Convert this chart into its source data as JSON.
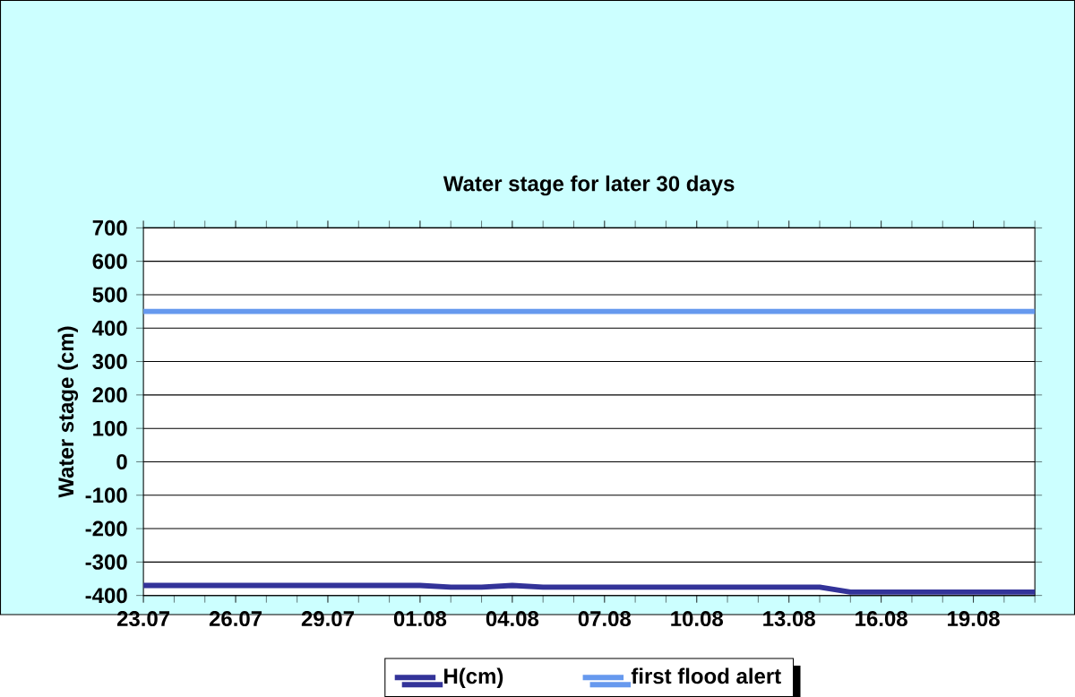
{
  "chart_data": {
    "type": "line",
    "title": "Water stage for later 30 days",
    "ylabel": "Water stage (cm)",
    "categories": [
      "23.07",
      null,
      null,
      "26.07",
      null,
      null,
      "29.07",
      null,
      null,
      "01.08",
      null,
      null,
      "04.08",
      null,
      null,
      "07.08",
      null,
      null,
      "10.08",
      null,
      null,
      "13.08",
      null,
      null,
      "16.08",
      null,
      null,
      "19.08",
      null,
      null
    ],
    "series": [
      {
        "name": "H(cm)",
        "color": "#333399",
        "values": [
          -370,
          -370,
          -370,
          -370,
          -370,
          -370,
          -370,
          -370,
          -370,
          -370,
          -375,
          -375,
          -370,
          -375,
          -375,
          -375,
          -375,
          -375,
          -375,
          -375,
          -375,
          -375,
          -375,
          -390,
          -390,
          -390,
          -390,
          -390,
          -390,
          -390
        ]
      },
      {
        "name": "first flood alert",
        "color": "#6699ee",
        "values": [
          450,
          450,
          450,
          450,
          450,
          450,
          450,
          450,
          450,
          450,
          450,
          450,
          450,
          450,
          450,
          450,
          450,
          450,
          450,
          450,
          450,
          450,
          450,
          450,
          450,
          450,
          450,
          450,
          450,
          450
        ]
      }
    ],
    "ylim": [
      -400,
      700
    ],
    "yticks": [
      -400,
      -300,
      -200,
      -100,
      0,
      100,
      200,
      300,
      400,
      500,
      600,
      700
    ],
    "grid": "y",
    "legend": "bottom",
    "marker": "none",
    "line_style": "solid"
  }
}
